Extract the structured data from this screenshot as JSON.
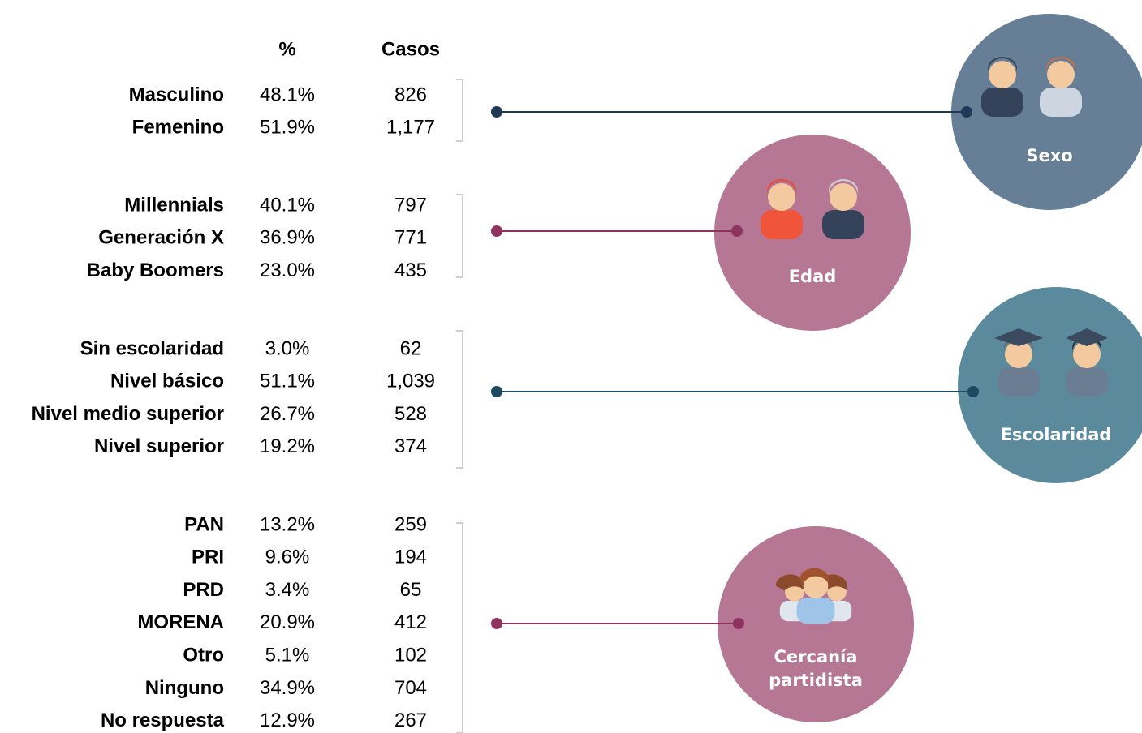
{
  "header": {
    "percent": "%",
    "cases": "Casos"
  },
  "groups": [
    {
      "title": "Sexo",
      "rows": [
        [
          "Masculino",
          "48.1%",
          "826"
        ],
        [
          "Femenino",
          "51.9%",
          "1,177"
        ]
      ]
    },
    {
      "title": "Edad",
      "rows": [
        [
          "Millennials",
          "40.1%",
          "797"
        ],
        [
          "Generación X",
          "36.9%",
          "771"
        ],
        [
          "Baby Boomers",
          "23.0%",
          "435"
        ]
      ]
    },
    {
      "title": "Escolaridad",
      "rows": [
        [
          "Sin escolaridad",
          "3.0%",
          "62"
        ],
        [
          "Nivel básico",
          "51.1%",
          "1,039"
        ],
        [
          "Nivel medio superior",
          "26.7%",
          "528"
        ],
        [
          "Nivel superior",
          "19.2%",
          "374"
        ]
      ]
    },
    {
      "title": "Cercanía partidista",
      "rows": [
        [
          "PAN",
          "13.2%",
          "259"
        ],
        [
          "PRI",
          "9.6%",
          "194"
        ],
        [
          "PRD",
          "3.4%",
          "65"
        ],
        [
          "MORENA",
          "20.9%",
          "412"
        ],
        [
          "Otro",
          "5.1%",
          "102"
        ],
        [
          "Ninguno",
          "34.9%",
          "704"
        ],
        [
          "No respuesta",
          "12.9%",
          "267"
        ]
      ]
    }
  ]
}
